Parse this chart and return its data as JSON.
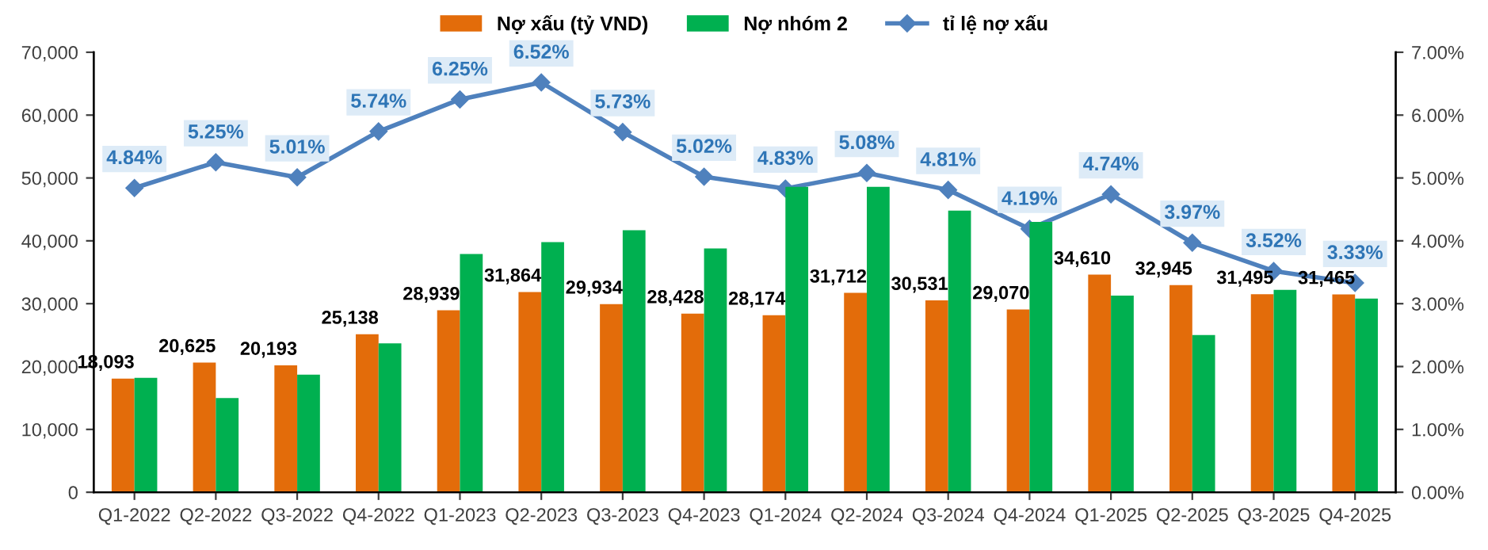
{
  "chart_data": {
    "type": "bar",
    "categories": [
      "Q1-2022",
      "Q2-2022",
      "Q3-2022",
      "Q4-2022",
      "Q1-2023",
      "Q2-2023",
      "Q3-2023",
      "Q4-2023",
      "Q1-2024",
      "Q2-2024",
      "Q3-2024",
      "Q4-2024",
      "Q1-2025",
      "Q2-2025",
      "Q3-2025",
      "Q4-2025"
    ],
    "series": [
      {
        "name": "Nợ xấu (tỷ VND)",
        "color": "#e36c0a",
        "values": [
          18093,
          20625,
          20193,
          25138,
          28939,
          31864,
          29934,
          28428,
          28174,
          31712,
          30531,
          29070,
          34610,
          32945,
          31495,
          31465
        ],
        "value_labels": [
          "18,093",
          "20,625",
          "20,193",
          "25,138",
          "28,939",
          "31,864",
          "29,934",
          "28,428",
          "28,174",
          "31,712",
          "30,531",
          "29,070",
          "34,610",
          "32,945",
          "31,495",
          "31,465"
        ]
      },
      {
        "name": "Nợ nhóm 2",
        "color": "#00b050",
        "values": [
          18200,
          15000,
          18700,
          23700,
          37900,
          39800,
          41700,
          38800,
          48600,
          48600,
          44800,
          43000,
          31300,
          25000,
          32200,
          30800
        ]
      },
      {
        "name": "tỉ lệ nợ xấu",
        "type": "line",
        "axis": "y2",
        "color": "#4f81bd",
        "marker": "diamond",
        "values": [
          4.84,
          5.25,
          5.01,
          5.74,
          6.25,
          6.52,
          5.73,
          5.02,
          4.83,
          5.08,
          4.81,
          4.19,
          4.74,
          3.97,
          3.52,
          3.33
        ],
        "value_labels": [
          "4.84%",
          "5.25%",
          "5.01%",
          "5.74%",
          "6.25%",
          "6.52%",
          "5.73%",
          "5.02%",
          "4.83%",
          "5.08%",
          "4.81%",
          "4.19%",
          "4.74%",
          "3.97%",
          "3.52%",
          "3.33%"
        ]
      }
    ],
    "ylim": [
      0,
      70000
    ],
    "yticks": [
      {
        "value": 0,
        "label": "0"
      },
      {
        "value": 10000,
        "label": "10,000"
      },
      {
        "value": 20000,
        "label": "20,000"
      },
      {
        "value": 30000,
        "label": "30,000"
      },
      {
        "value": 40000,
        "label": "40,000"
      },
      {
        "value": 50000,
        "label": "50,000"
      },
      {
        "value": 60000,
        "label": "60,000"
      },
      {
        "value": 70000,
        "label": "70,000"
      }
    ],
    "y2lim": [
      0,
      7
    ],
    "y2ticks": [
      {
        "value": 0,
        "label": "0.00%"
      },
      {
        "value": 1,
        "label": "1.00%"
      },
      {
        "value": 2,
        "label": "2.00%"
      },
      {
        "value": 3,
        "label": "3.00%"
      },
      {
        "value": 4,
        "label": "4.00%"
      },
      {
        "value": 5,
        "label": "5.00%"
      },
      {
        "value": 6,
        "label": "6.00%"
      },
      {
        "value": 7,
        "label": "7.00%"
      }
    ],
    "legend": "top",
    "grid": false
  }
}
